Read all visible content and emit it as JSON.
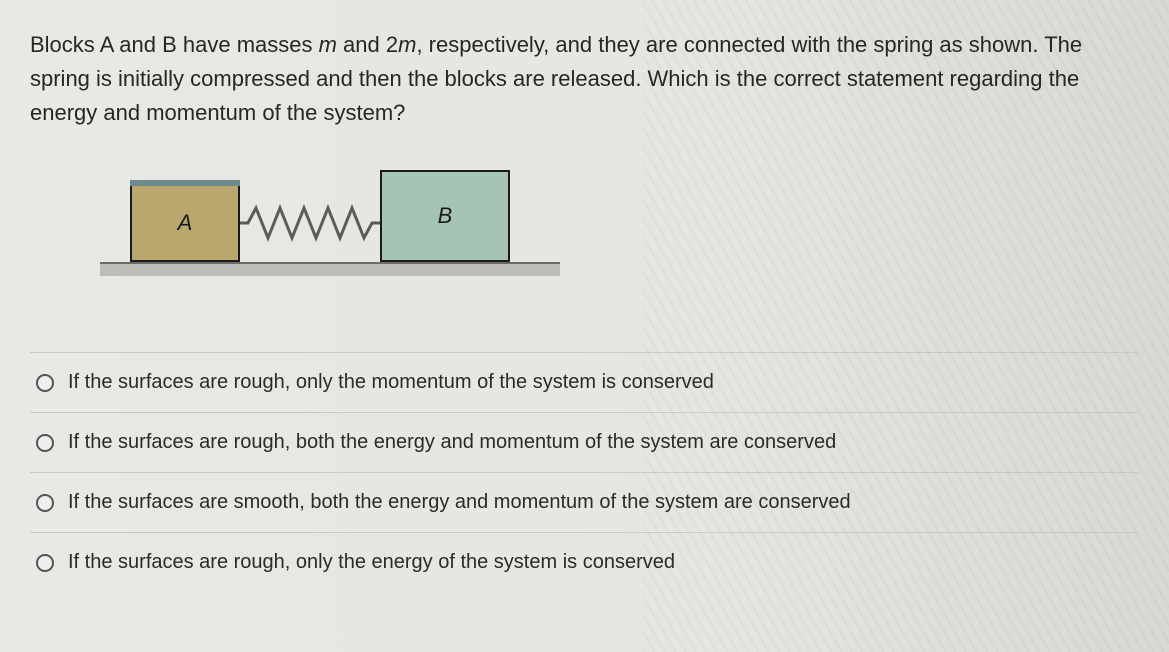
{
  "question_html": "Blocks A and B have masses <span class=\"ital\">m</span> and 2<span class=\"ital\">m</span>, respectively, and they are connected with the spring as shown. The spring is initially compressed and then the blocks are released. Which is the correct statement regarding the energy and momentum of the system?",
  "figure": {
    "blockA_label": "A",
    "blockB_label": "B",
    "blockA_color": "#b9a76e",
    "blockB_color": "#a5c4b6",
    "spring_color": "#5a5a5a",
    "ground_color": "#bdbdb8",
    "border_color": "#1a1a1a"
  },
  "options": [
    "If the surfaces are rough, only the momentum of the system is conserved",
    "If the surfaces are rough, both the energy and momentum of the system are conserved",
    "If the surfaces are smooth, both the energy and momentum of the system are conserved",
    "If the surfaces are rough, only the energy of the system is conserved"
  ],
  "style": {
    "background": "#e6e6e2",
    "text_color": "#2a2a2a",
    "divider_color": "#c9c9c4",
    "question_fontsize": 22,
    "option_fontsize": 20
  }
}
